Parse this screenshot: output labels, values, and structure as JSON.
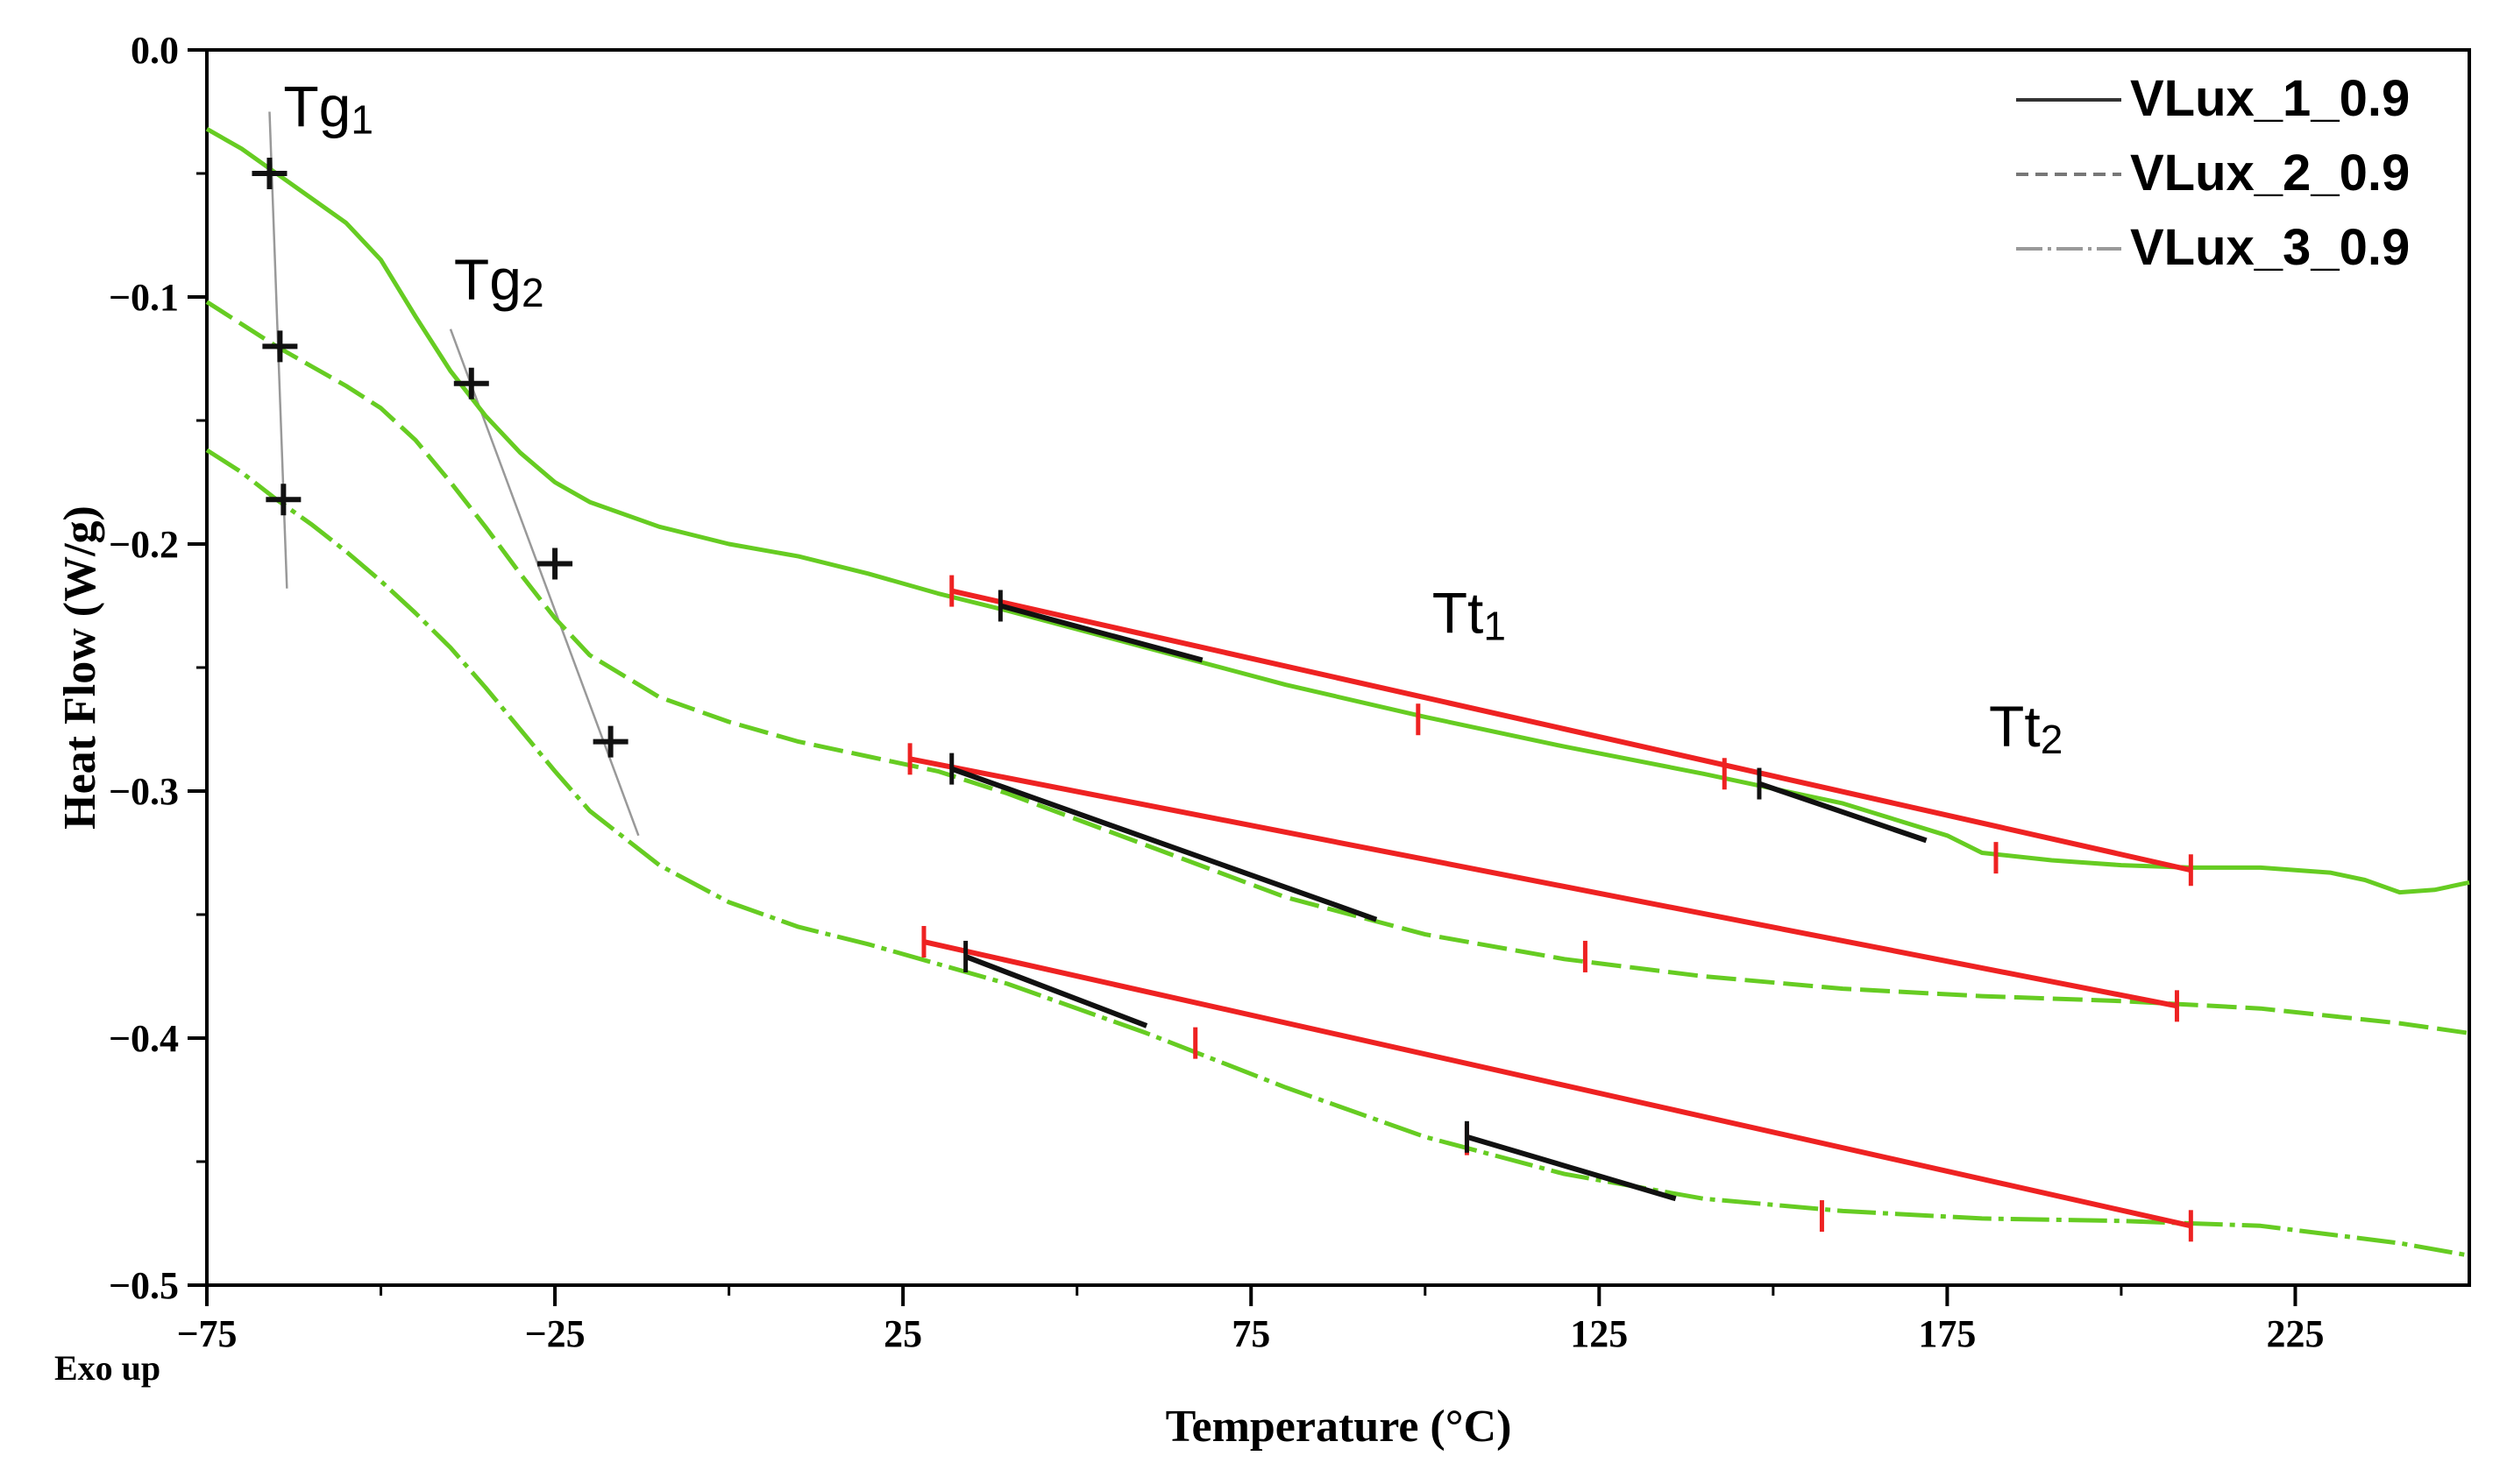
{
  "chart_data": {
    "type": "line",
    "title": "",
    "xlabel": "Temperature (°C)",
    "ylabel": "Heat Flow (W/g)",
    "corner_note": "Exo up",
    "xlim": [
      -75,
      250
    ],
    "ylim": [
      -0.5,
      0.0
    ],
    "x_ticks": [
      -75,
      -25,
      25,
      75,
      125,
      175,
      225
    ],
    "x_tick_labels": [
      "−75",
      "−25",
      "25",
      "75",
      "125",
      "175",
      "225"
    ],
    "y_ticks": [
      0.0,
      -0.1,
      -0.2,
      -0.3,
      -0.4,
      -0.5
    ],
    "y_tick_labels": [
      "0.0",
      "−0.1",
      "−0.2",
      "−0.3",
      "−0.4",
      "−0.5"
    ],
    "legend": [
      {
        "name": "VLux_1_0.9",
        "style": "solid"
      },
      {
        "name": "VLux_2_0.9",
        "style": "dashed"
      },
      {
        "name": "VLux_3_0.9",
        "style": "dashdot"
      }
    ],
    "series": [
      {
        "name": "VLux_1_0.9",
        "color": "#66cc22",
        "style": "solid",
        "x": [
          -75,
          -70,
          -65,
          -60,
          -55,
          -50,
          -45,
          -40,
          -35,
          -30,
          -25,
          -20,
          -10,
          0,
          10,
          20,
          30,
          40,
          60,
          80,
          100,
          120,
          140,
          160,
          175,
          180,
          190,
          200,
          210,
          220,
          230,
          235,
          240,
          245,
          250
        ],
        "y": [
          -0.032,
          -0.04,
          -0.05,
          -0.06,
          -0.07,
          -0.085,
          -0.108,
          -0.13,
          -0.148,
          -0.163,
          -0.175,
          -0.183,
          -0.193,
          -0.2,
          -0.205,
          -0.212,
          -0.22,
          -0.227,
          -0.242,
          -0.257,
          -0.27,
          -0.282,
          -0.293,
          -0.305,
          -0.318,
          -0.325,
          -0.328,
          -0.33,
          -0.331,
          -0.331,
          -0.333,
          -0.336,
          -0.341,
          -0.34,
          -0.337
        ]
      },
      {
        "name": "VLux_2_0.9",
        "color": "#66cc22",
        "style": "dashed",
        "x": [
          -75,
          -70,
          -65,
          -60,
          -55,
          -50,
          -45,
          -40,
          -35,
          -30,
          -25,
          -20,
          -10,
          0,
          10,
          20,
          30,
          40,
          60,
          80,
          100,
          120,
          140,
          160,
          180,
          200,
          220,
          240,
          250
        ],
        "y": [
          -0.102,
          -0.111,
          -0.12,
          -0.128,
          -0.136,
          -0.145,
          -0.158,
          -0.175,
          -0.193,
          -0.212,
          -0.23,
          -0.245,
          -0.262,
          -0.272,
          -0.28,
          -0.286,
          -0.292,
          -0.301,
          -0.322,
          -0.343,
          -0.358,
          -0.368,
          -0.375,
          -0.38,
          -0.383,
          -0.385,
          -0.388,
          -0.394,
          -0.398
        ]
      },
      {
        "name": "VLux_3_0.9",
        "color": "#66cc22",
        "style": "dashdot",
        "x": [
          -75,
          -70,
          -65,
          -60,
          -55,
          -50,
          -45,
          -40,
          -35,
          -30,
          -25,
          -20,
          -10,
          0,
          10,
          20,
          30,
          40,
          60,
          80,
          100,
          120,
          140,
          160,
          180,
          200,
          220,
          240,
          250
        ],
        "y": [
          -0.162,
          -0.171,
          -0.182,
          -0.192,
          -0.203,
          -0.215,
          -0.228,
          -0.242,
          -0.258,
          -0.275,
          -0.292,
          -0.308,
          -0.33,
          -0.345,
          -0.355,
          -0.362,
          -0.37,
          -0.378,
          -0.398,
          -0.42,
          -0.44,
          -0.455,
          -0.465,
          -0.47,
          -0.473,
          -0.474,
          -0.476,
          -0.483,
          -0.488
        ]
      }
    ],
    "tangent_lines": {
      "red": [
        {
          "x": [
            32,
            210
          ],
          "y": [
            -0.219,
            -0.332
          ]
        },
        {
          "x": [
            26,
            208
          ],
          "y": [
            -0.287,
            -0.387
          ]
        },
        {
          "x": [
            28,
            210
          ],
          "y": [
            -0.361,
            -0.476
          ]
        }
      ],
      "black": [
        {
          "x": [
            39,
            68
          ],
          "y": [
            -0.225,
            -0.247
          ]
        },
        {
          "x": [
            148,
            172
          ],
          "y": [
            -0.297,
            -0.32
          ]
        },
        {
          "x": [
            32,
            93
          ],
          "y": [
            -0.291,
            -0.352
          ]
        },
        {
          "x": [
            34,
            60
          ],
          "y": [
            -0.367,
            -0.395
          ]
        },
        {
          "x": [
            106,
            136
          ],
          "y": [
            -0.44,
            -0.465
          ]
        }
      ]
    },
    "red_ticks": [
      {
        "x": 32,
        "y": -0.219
      },
      {
        "x": 99,
        "y": -0.271
      },
      {
        "x": 143,
        "y": -0.293
      },
      {
        "x": 182,
        "y": -0.327
      },
      {
        "x": 210,
        "y": -0.332
      },
      {
        "x": 26,
        "y": -0.287
      },
      {
        "x": 123,
        "y": -0.367
      },
      {
        "x": 208,
        "y": -0.387
      },
      {
        "x": 28,
        "y": -0.361
      },
      {
        "x": 67,
        "y": -0.402
      },
      {
        "x": 106,
        "y": -0.441
      },
      {
        "x": 157,
        "y": -0.472
      },
      {
        "x": 210,
        "y": -0.476
      }
    ],
    "black_ticks": [
      {
        "x": 39,
        "y": -0.225
      },
      {
        "x": 148,
        "y": -0.297
      },
      {
        "x": 32,
        "y": -0.291
      },
      {
        "x": 34,
        "y": -0.367
      },
      {
        "x": 106,
        "y": -0.44
      }
    ],
    "tg_markers": [
      {
        "x": -66,
        "y": -0.05
      },
      {
        "x": -64.5,
        "y": -0.12
      },
      {
        "x": -64,
        "y": -0.182
      },
      {
        "x": -37,
        "y": -0.135
      },
      {
        "x": -25,
        "y": -0.208
      },
      {
        "x": -17,
        "y": -0.28
      }
    ],
    "tg_guides": [
      {
        "x": [
          -66,
          -63.5
        ],
        "y": [
          -0.025,
          -0.218
        ]
      },
      {
        "x": [
          -40,
          -13
        ],
        "y": [
          -0.113,
          -0.318
        ]
      }
    ],
    "annotations": [
      {
        "id": "tg1",
        "main": "Tg",
        "sub": "1",
        "x": -64,
        "y": -0.031
      },
      {
        "id": "tg2",
        "main": "Tg",
        "sub": "2",
        "x": -39.5,
        "y": -0.101
      },
      {
        "id": "tt1",
        "main": "Tt",
        "sub": "1",
        "x": 101,
        "y": -0.236
      },
      {
        "id": "tt2",
        "main": "Tt",
        "sub": "2",
        "x": 181,
        "y": -0.282
      }
    ]
  }
}
